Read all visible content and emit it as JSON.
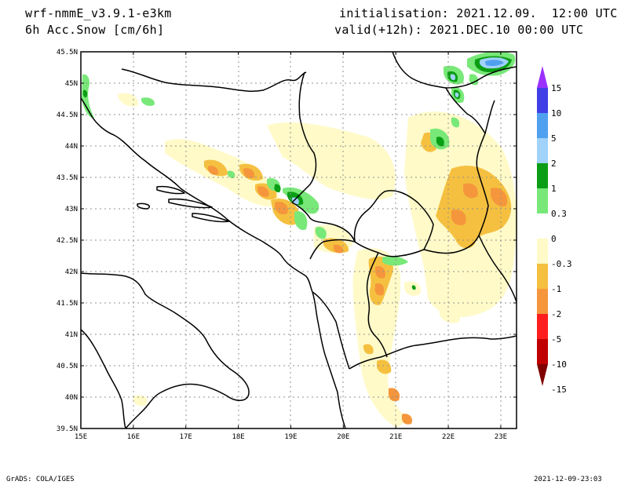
{
  "header": {
    "model": "wrf-nmmE_v3.9.1-e3km",
    "field": "6h Acc.Snow [cm/6h]",
    "init": "initialisation: 2021.12.09.  12:00 UTC",
    "valid": "valid(+12h): 2021.DEC.10 00:00 UTC"
  },
  "map": {
    "lon_labels": [
      "15E",
      "16E",
      "17E",
      "18E",
      "19E",
      "20E",
      "21E",
      "22E",
      "23E"
    ],
    "lat_labels": [
      "45.5N",
      "45N",
      "44.5N",
      "44N",
      "43.5N",
      "43N",
      "42.5N",
      "42N",
      "41.5N",
      "41N",
      "40.5N",
      "40N",
      "39.5N"
    ],
    "lon_range": [
      15,
      23.3
    ],
    "lat_range": [
      39.5,
      45.5
    ],
    "grid": true
  },
  "colorbar": {
    "labels": [
      "15",
      "10",
      "5",
      "2",
      "1",
      "0.3",
      "0",
      "-0.3",
      "-1",
      "-2",
      "-5",
      "-10",
      "-15"
    ],
    "colors": [
      "#9b30ff",
      "#4040e6",
      "#50a0f0",
      "#a0d2fa",
      "#0a9e14",
      "#78e878",
      "#ffffff",
      "#fffac8",
      "#f5c040",
      "#f5963c",
      "#ff1e1e",
      "#c00000",
      "#800000"
    ]
  },
  "footer": {
    "left": "GrADS: COLA/IGES",
    "right": "2021-12-09-23:03"
  }
}
